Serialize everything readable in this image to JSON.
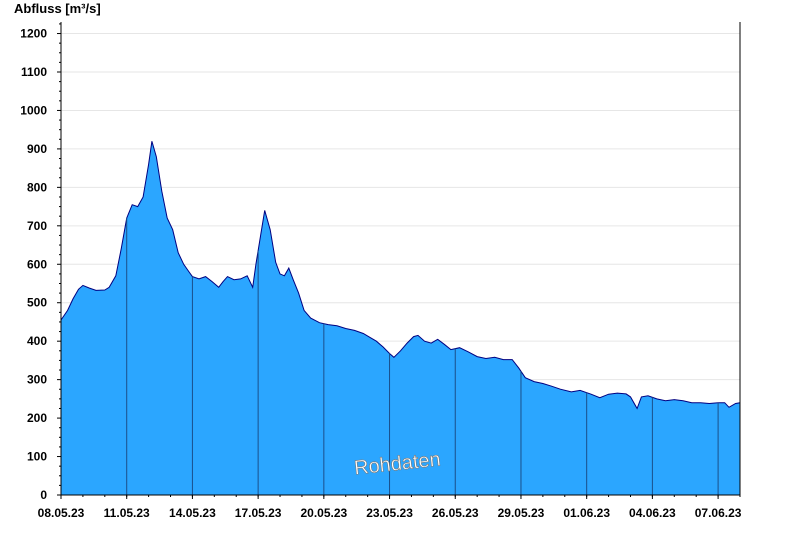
{
  "chart_data": {
    "type": "area",
    "title": "",
    "ylabel": "Abfluss [m³/s]",
    "xlabel": "",
    "ylim": [
      0,
      1230
    ],
    "yticks": [
      0,
      100,
      200,
      300,
      400,
      500,
      600,
      700,
      800,
      900,
      1000,
      1100,
      1200
    ],
    "xlim_days": [
      0,
      31
    ],
    "x_tick_labels": [
      "08.05.23",
      "11.05.23",
      "14.05.23",
      "17.05.23",
      "20.05.23",
      "23.05.23",
      "26.05.23",
      "29.05.23",
      "01.06.23",
      "04.06.23",
      "07.06.23"
    ],
    "grid": true,
    "fill_color": "#2ba6ff",
    "line_color": "#000080",
    "watermark": "Rohdaten",
    "series": [
      {
        "points": [
          [
            0.0,
            455
          ],
          [
            0.3,
            480
          ],
          [
            0.55,
            510
          ],
          [
            0.8,
            535
          ],
          [
            1.0,
            545
          ],
          [
            1.3,
            538
          ],
          [
            1.6,
            532
          ],
          [
            2.0,
            533
          ],
          [
            2.2,
            540
          ],
          [
            2.5,
            570
          ],
          [
            2.75,
            640
          ],
          [
            3.0,
            720
          ],
          [
            3.25,
            755
          ],
          [
            3.5,
            750
          ],
          [
            3.75,
            775
          ],
          [
            4.0,
            860
          ],
          [
            4.15,
            920
          ],
          [
            4.35,
            880
          ],
          [
            4.6,
            790
          ],
          [
            4.85,
            720
          ],
          [
            5.1,
            690
          ],
          [
            5.35,
            630
          ],
          [
            5.6,
            600
          ],
          [
            5.85,
            580
          ],
          [
            6.0,
            568
          ],
          [
            6.3,
            562
          ],
          [
            6.6,
            568
          ],
          [
            6.9,
            555
          ],
          [
            7.2,
            540
          ],
          [
            7.4,
            555
          ],
          [
            7.6,
            568
          ],
          [
            7.9,
            560
          ],
          [
            8.2,
            562
          ],
          [
            8.5,
            570
          ],
          [
            8.75,
            540
          ],
          [
            8.9,
            600
          ],
          [
            9.1,
            670
          ],
          [
            9.3,
            740
          ],
          [
            9.55,
            690
          ],
          [
            9.8,
            605
          ],
          [
            10.0,
            575
          ],
          [
            10.2,
            570
          ],
          [
            10.4,
            590
          ],
          [
            10.6,
            560
          ],
          [
            10.85,
            525
          ],
          [
            11.1,
            480
          ],
          [
            11.4,
            460
          ],
          [
            11.8,
            448
          ],
          [
            12.2,
            443
          ],
          [
            12.6,
            440
          ],
          [
            13.0,
            433
          ],
          [
            13.4,
            428
          ],
          [
            13.8,
            420
          ],
          [
            14.1,
            410
          ],
          [
            14.4,
            400
          ],
          [
            14.7,
            385
          ],
          [
            15.0,
            368
          ],
          [
            15.2,
            358
          ],
          [
            15.5,
            375
          ],
          [
            15.8,
            395
          ],
          [
            16.1,
            412
          ],
          [
            16.3,
            415
          ],
          [
            16.6,
            400
          ],
          [
            16.9,
            395
          ],
          [
            17.2,
            405
          ],
          [
            17.5,
            392
          ],
          [
            17.8,
            378
          ],
          [
            18.2,
            383
          ],
          [
            18.6,
            372
          ],
          [
            19.0,
            360
          ],
          [
            19.4,
            355
          ],
          [
            19.8,
            358
          ],
          [
            20.2,
            352
          ],
          [
            20.6,
            352
          ],
          [
            20.9,
            330
          ],
          [
            21.2,
            305
          ],
          [
            21.6,
            295
          ],
          [
            22.0,
            290
          ],
          [
            22.4,
            283
          ],
          [
            22.8,
            275
          ],
          [
            23.3,
            268
          ],
          [
            23.7,
            272
          ],
          [
            24.2,
            262
          ],
          [
            24.6,
            253
          ],
          [
            25.0,
            262
          ],
          [
            25.4,
            265
          ],
          [
            25.8,
            263
          ],
          [
            26.0,
            255
          ],
          [
            26.3,
            225
          ],
          [
            26.5,
            255
          ],
          [
            26.8,
            258
          ],
          [
            27.2,
            250
          ],
          [
            27.6,
            245
          ],
          [
            28.0,
            248
          ],
          [
            28.4,
            245
          ],
          [
            28.8,
            240
          ],
          [
            29.2,
            240
          ],
          [
            29.6,
            238
          ],
          [
            30.0,
            240
          ],
          [
            30.3,
            240
          ],
          [
            30.5,
            228
          ],
          [
            30.8,
            238
          ],
          [
            31.0,
            240
          ]
        ]
      }
    ]
  }
}
